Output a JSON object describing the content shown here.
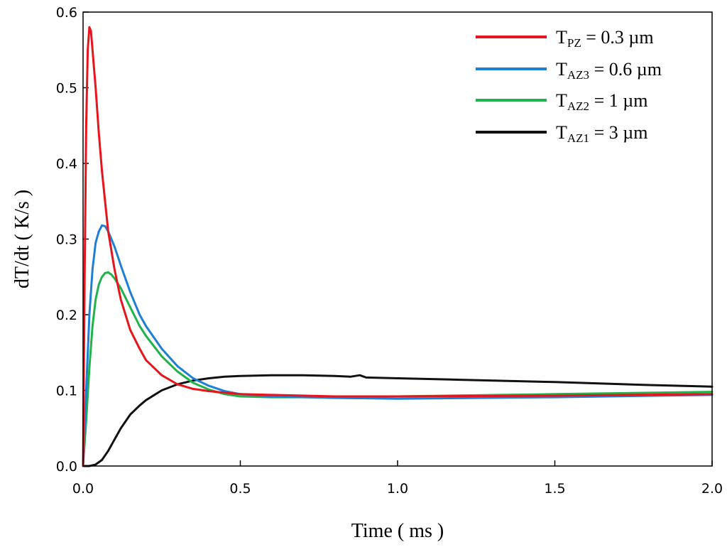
{
  "chart_data": {
    "type": "line",
    "title": "",
    "xlabel": "Time ( ms )",
    "ylabel": "dT/dt ( K/s )",
    "xlim": [
      0,
      2
    ],
    "ylim": [
      0,
      0.6
    ],
    "x_ticks": [
      0,
      0.5,
      1,
      1.5,
      2
    ],
    "x_tick_labels": [
      "0.0",
      "0.5",
      "1.0",
      "1.5",
      "2.0"
    ],
    "y_ticks": [
      0,
      0.1,
      0.2,
      0.3,
      0.4,
      0.5,
      0.6
    ],
    "y_tick_labels": [
      "0.0",
      "0.1",
      "0.2",
      "0.3",
      "0.4",
      "0.5",
      "0.6"
    ],
    "grid": false,
    "legend_position": "top-right",
    "series": [
      {
        "name": "TPZ = 0.3 µm",
        "label_main": "T",
        "label_sub": "PZ",
        "label_rest": "  = 0.3 µm",
        "color": "#e8141c",
        "x": [
          0,
          0.005,
          0.01,
          0.015,
          0.02,
          0.025,
          0.03,
          0.04,
          0.05,
          0.06,
          0.07,
          0.08,
          0.1,
          0.12,
          0.15,
          0.18,
          0.2,
          0.25,
          0.3,
          0.35,
          0.4,
          0.45,
          0.5,
          0.6,
          0.8,
          1.0,
          1.5,
          2.0
        ],
        "y": [
          0,
          0.25,
          0.45,
          0.55,
          0.58,
          0.575,
          0.55,
          0.5,
          0.44,
          0.39,
          0.35,
          0.31,
          0.26,
          0.22,
          0.18,
          0.155,
          0.14,
          0.12,
          0.108,
          0.102,
          0.099,
          0.097,
          0.095,
          0.094,
          0.092,
          0.092,
          0.093,
          0.095
        ]
      },
      {
        "name": "TAZ3 = 0.6 µm",
        "label_main": "T",
        "label_sub": "AZ3",
        "label_rest": " = 0.6 µm",
        "color": "#1e7fd6",
        "x": [
          0,
          0.01,
          0.02,
          0.03,
          0.04,
          0.05,
          0.06,
          0.07,
          0.08,
          0.09,
          0.1,
          0.12,
          0.15,
          0.18,
          0.2,
          0.25,
          0.3,
          0.35,
          0.4,
          0.45,
          0.5,
          0.6,
          0.8,
          1.0,
          1.5,
          2.0
        ],
        "y": [
          0,
          0.1,
          0.2,
          0.26,
          0.295,
          0.31,
          0.318,
          0.317,
          0.31,
          0.3,
          0.29,
          0.265,
          0.23,
          0.2,
          0.185,
          0.155,
          0.132,
          0.116,
          0.106,
          0.099,
          0.095,
          0.092,
          0.09,
          0.089,
          0.091,
          0.094
        ]
      },
      {
        "name": "TAZ2 = 1 µm",
        "label_main": "T",
        "label_sub": "AZ2",
        "label_rest": " = 1 µm",
        "color": "#1fb34a",
        "x": [
          0,
          0.01,
          0.02,
          0.03,
          0.04,
          0.05,
          0.06,
          0.07,
          0.08,
          0.09,
          0.1,
          0.12,
          0.15,
          0.18,
          0.2,
          0.25,
          0.3,
          0.35,
          0.4,
          0.45,
          0.5,
          0.6,
          0.8,
          1.0,
          1.5,
          2.0
        ],
        "y": [
          0,
          0.06,
          0.13,
          0.185,
          0.22,
          0.24,
          0.25,
          0.255,
          0.256,
          0.253,
          0.248,
          0.235,
          0.21,
          0.185,
          0.172,
          0.145,
          0.125,
          0.11,
          0.101,
          0.095,
          0.092,
          0.091,
          0.091,
          0.092,
          0.095,
          0.098
        ]
      },
      {
        "name": "TAZ1 = 3 µm",
        "label_main": "T",
        "label_sub": "AZ1",
        "label_rest": " = 3 µm",
        "color": "#111111",
        "x": [
          0,
          0.02,
          0.04,
          0.06,
          0.08,
          0.1,
          0.12,
          0.15,
          0.18,
          0.2,
          0.25,
          0.3,
          0.35,
          0.4,
          0.45,
          0.5,
          0.6,
          0.7,
          0.8,
          0.85,
          0.88,
          0.9,
          1.0,
          1.2,
          1.5,
          1.8,
          2.0
        ],
        "y": [
          0,
          0,
          0.002,
          0.008,
          0.02,
          0.035,
          0.05,
          0.068,
          0.08,
          0.087,
          0.1,
          0.108,
          0.113,
          0.116,
          0.118,
          0.119,
          0.12,
          0.12,
          0.119,
          0.118,
          0.12,
          0.117,
          0.116,
          0.114,
          0.111,
          0.107,
          0.105
        ]
      }
    ]
  }
}
